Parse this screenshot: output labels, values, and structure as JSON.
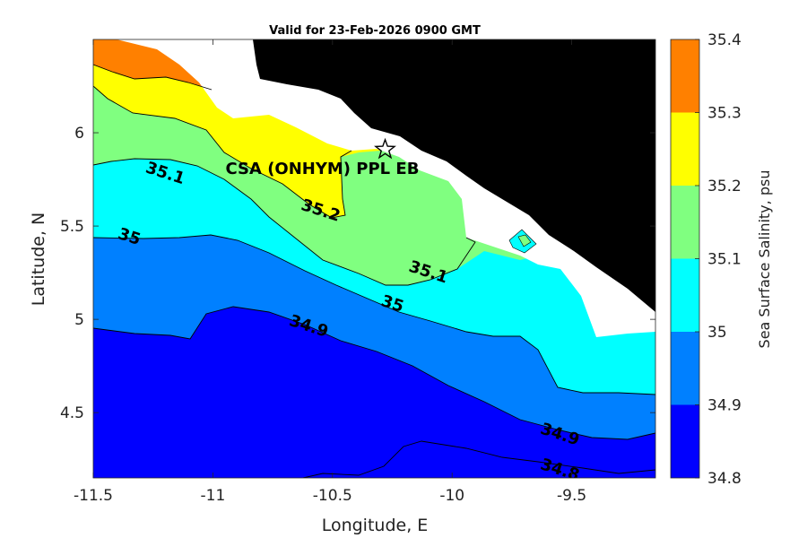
{
  "title": "Valid for 23-Feb-2026 0900 GMT",
  "site_label": "CSA (ONHYM) PPL EB",
  "chart_data": {
    "type": "contour-map",
    "xlabel": "Longitude, E",
    "ylabel": "Latitude, N",
    "xlim": [
      -11.5,
      -9.15
    ],
    "ylim": [
      4.15,
      6.5
    ],
    "xticks": [
      -11.5,
      -11,
      -10.5,
      -10,
      -9.5
    ],
    "xtick_labels": [
      "-11.5",
      "-11",
      "-10.5",
      "-10",
      "-9.5"
    ],
    "yticks": [
      4.5,
      5,
      5.5,
      6
    ],
    "ytick_labels": [
      "4.5",
      "5",
      "5.5",
      "6"
    ],
    "site_marker": {
      "lon": -10.28,
      "lat": 5.91
    },
    "levels": [
      34.8,
      34.9,
      35.0,
      35.1,
      35.2,
      35.3,
      35.4
    ],
    "colorbar": {
      "label": "Sea Surface Salinity, psu",
      "bands": [
        {
          "from": 34.8,
          "to": 34.9,
          "color": "#0000ff"
        },
        {
          "from": 34.9,
          "to": 35.0,
          "color": "#0080ff"
        },
        {
          "from": 35.0,
          "to": 35.1,
          "color": "#00ffff"
        },
        {
          "from": 35.1,
          "to": 35.2,
          "color": "#80ff80"
        },
        {
          "from": 35.2,
          "to": 35.3,
          "color": "#ffff00"
        },
        {
          "from": 35.3,
          "to": 35.4,
          "color": "#ff8000"
        }
      ],
      "tick_labels": [
        "34.8",
        "34.9",
        "35",
        "35.1",
        "35.2",
        "35.3",
        "35.4"
      ]
    },
    "contour_labels": [
      {
        "text": "35.1",
        "lon": -11.2,
        "lat": 5.78
      },
      {
        "text": "35.2",
        "lon": -10.55,
        "lat": 5.58
      },
      {
        "text": "35",
        "lon": -11.35,
        "lat": 5.44
      },
      {
        "text": "35.1",
        "lon": -10.1,
        "lat": 5.25
      },
      {
        "text": "35",
        "lon": -10.25,
        "lat": 5.08
      },
      {
        "text": "34.9",
        "lon": -10.6,
        "lat": 4.96
      },
      {
        "text": "34.9",
        "lon": -9.55,
        "lat": 4.38
      },
      {
        "text": "34.8",
        "lon": -9.55,
        "lat": 4.19
      }
    ],
    "land_color": "#000000",
    "nodata_color": "#ffffff"
  }
}
